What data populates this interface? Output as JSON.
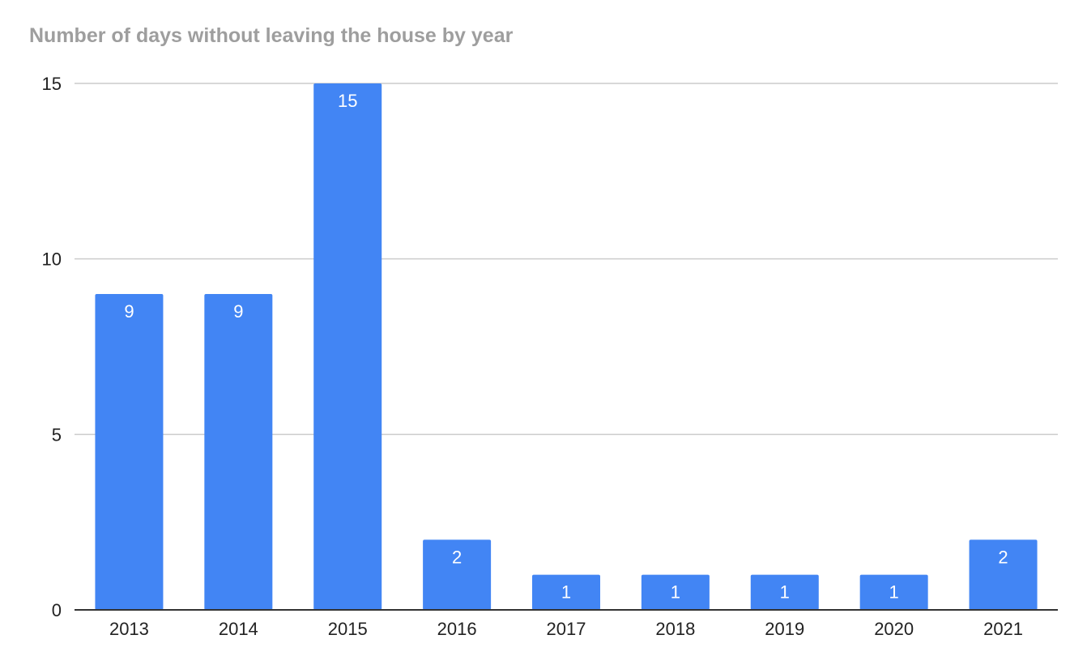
{
  "chart_data": {
    "type": "bar",
    "title": "Number of days without leaving the house by year",
    "xlabel": "",
    "ylabel": "",
    "categories": [
      "2013",
      "2014",
      "2015",
      "2016",
      "2017",
      "2018",
      "2019",
      "2020",
      "2021"
    ],
    "values": [
      9,
      9,
      15,
      2,
      1,
      1,
      1,
      1,
      2
    ],
    "data_labels": [
      "9",
      "9",
      "15",
      "2",
      "1",
      "1",
      "1",
      "1",
      "2"
    ],
    "ylim": [
      0,
      15
    ],
    "y_ticks": [
      0,
      5,
      10,
      15
    ],
    "y_tick_labels": [
      "0",
      "5",
      "10",
      "15"
    ],
    "grid": true,
    "legend": "none",
    "bar_color": "#4285f4",
    "grid_color": "#cccccc",
    "axis_color": "#333333",
    "title_color": "#9e9e9e"
  }
}
